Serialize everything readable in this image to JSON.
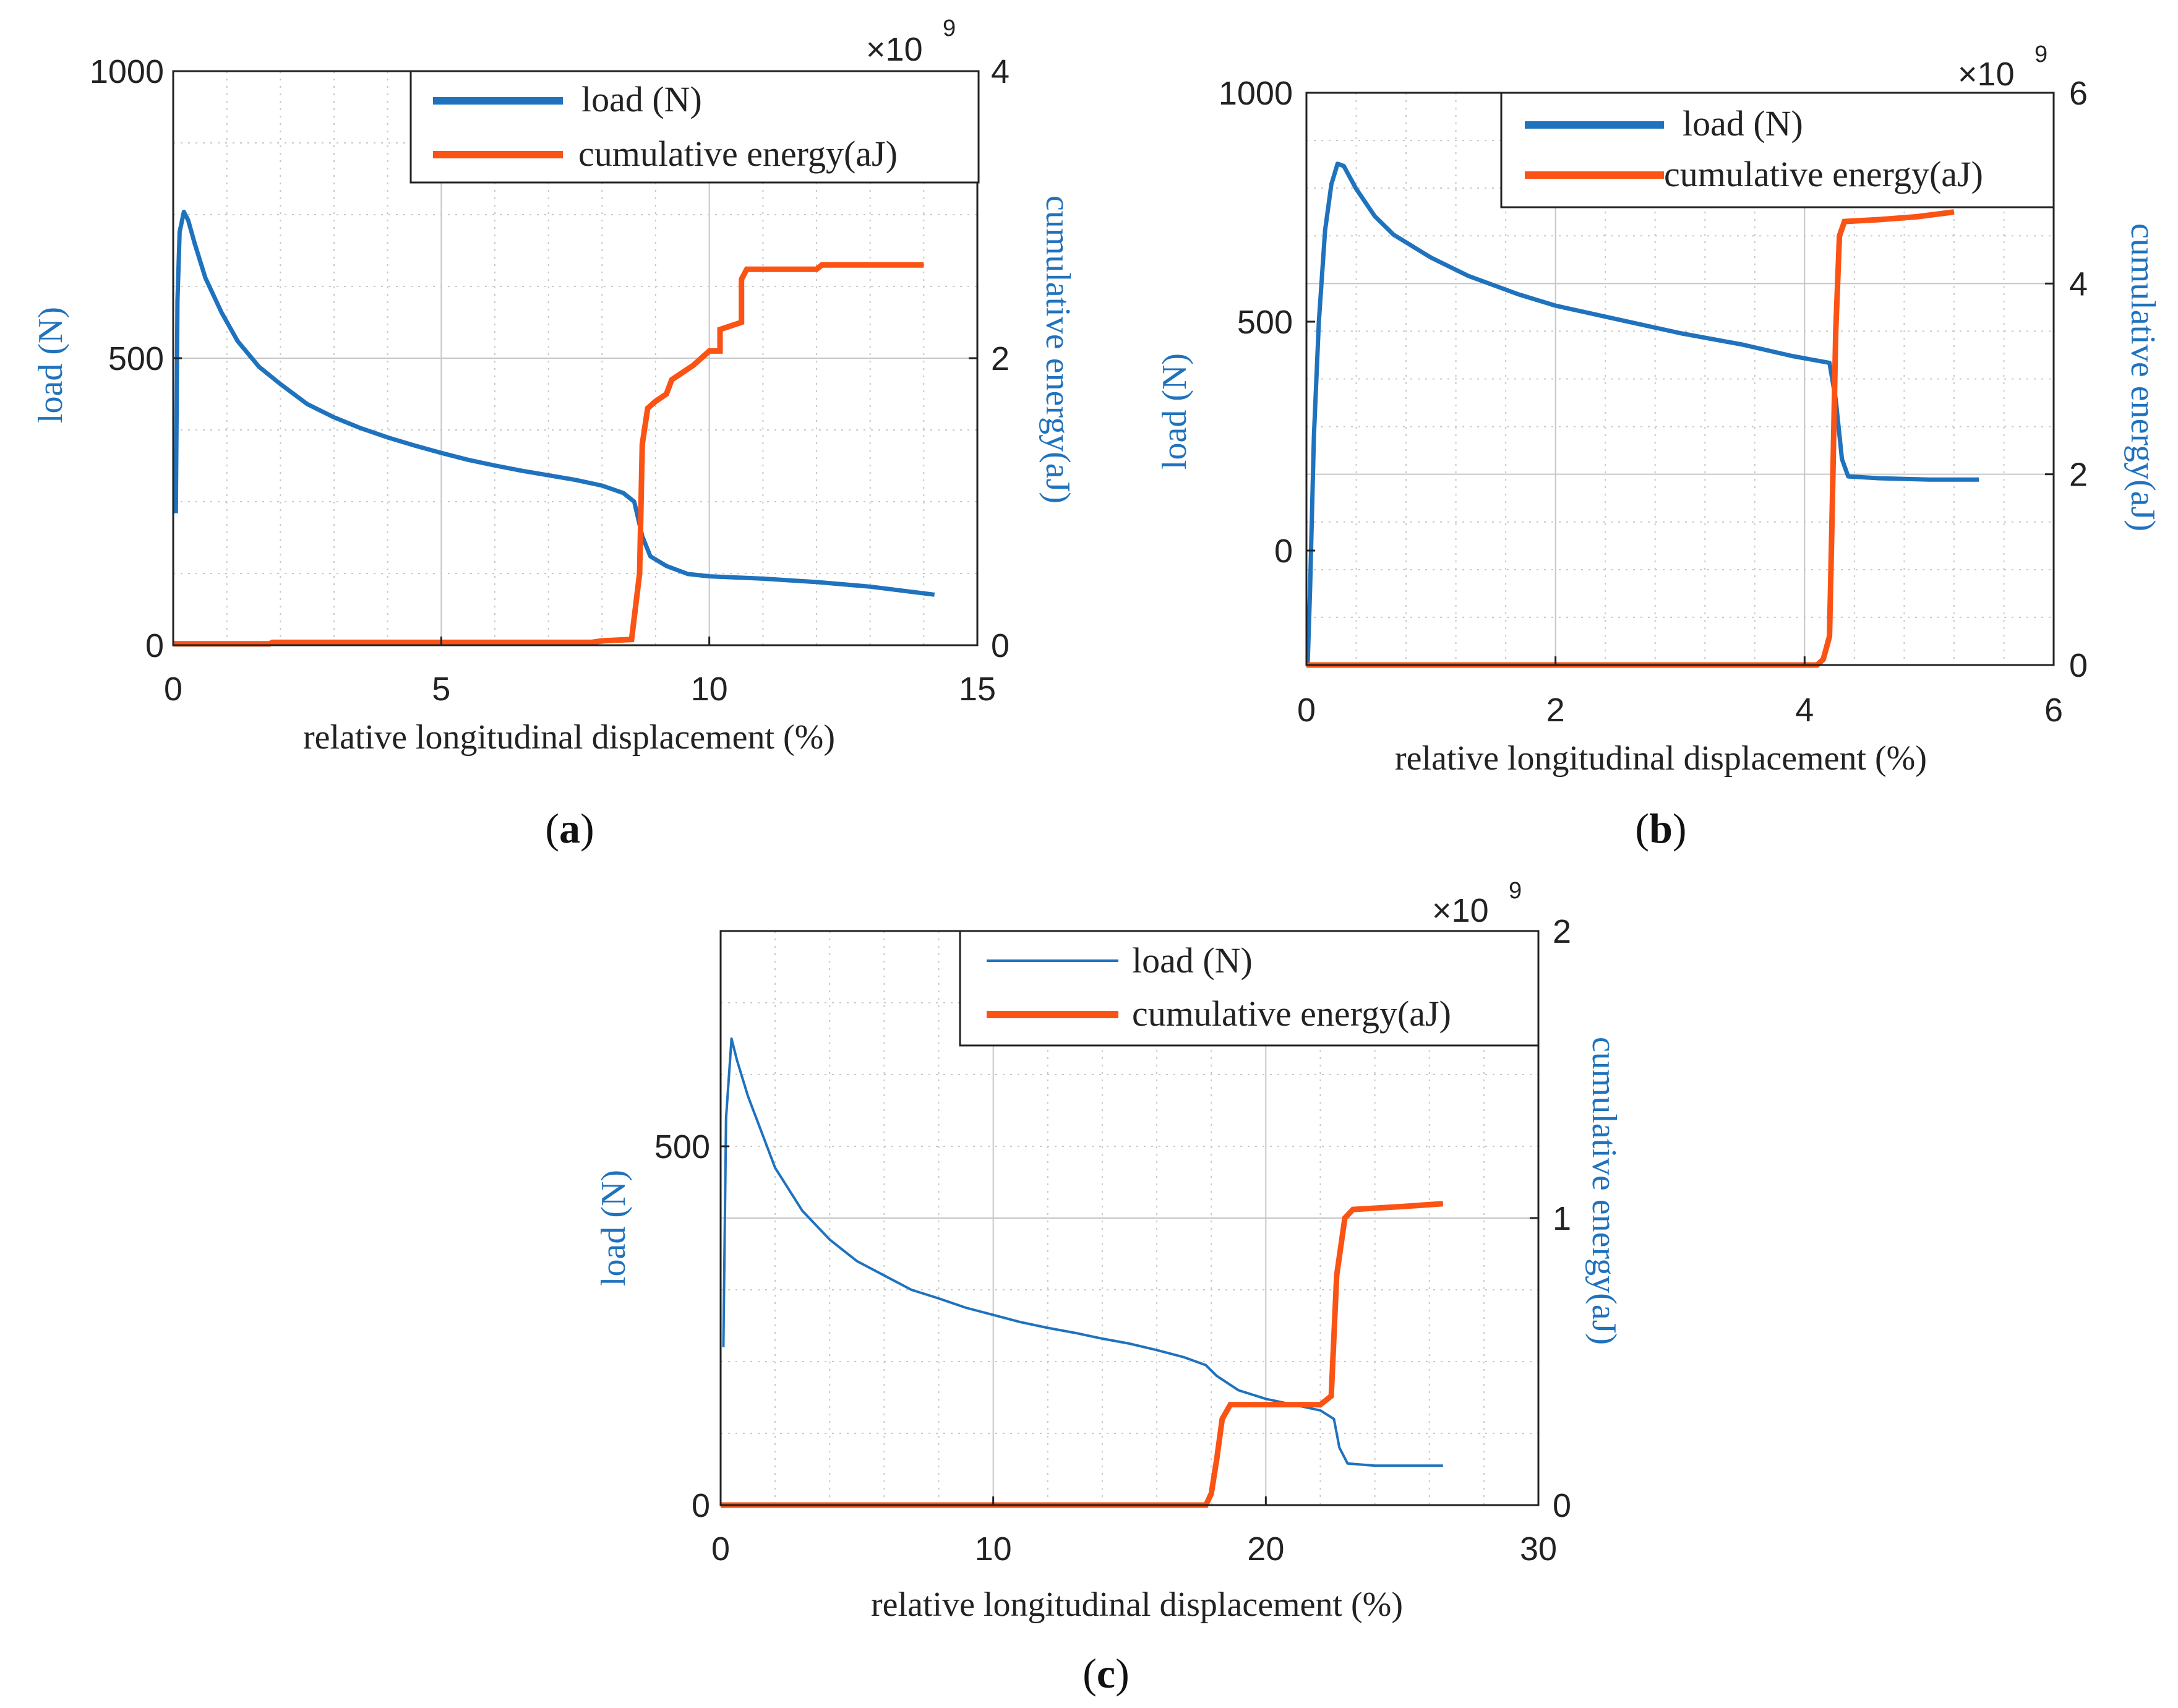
{
  "figure": {
    "caption_labels": [
      "a",
      "b",
      "c"
    ]
  },
  "colors": {
    "load": "#1f72bd",
    "energy": "#fb5314",
    "grid": "#b8b8b8",
    "axis": "#222222",
    "right_axis_label": "#1f72bd"
  },
  "chart_data": [
    {
      "id": "a",
      "type": "line",
      "caption": "(a)",
      "xlabel": "relative longitudinal displacement (%)",
      "ylabel_left": "load (N)",
      "ylabel_right": "cumulative energy(aJ)",
      "xlim": [
        0,
        15
      ],
      "ylim_left": [
        0,
        1000
      ],
      "ylim_right": [
        0,
        4
      ],
      "xticks": [
        0,
        5,
        10,
        15
      ],
      "yticks_left": [
        0,
        500,
        1000
      ],
      "yticks_right": [
        0,
        2,
        4
      ],
      "right_exponent": "×10",
      "right_exponent_power": "9",
      "grid": true,
      "legend": {
        "position": "top-right",
        "entries": [
          "load (N)",
          "cumulative energy(aJ)"
        ],
        "load_line": "thick"
      },
      "series": [
        {
          "name": "load (N)",
          "axis": "left",
          "points": [
            [
              0.05,
              230
            ],
            [
              0.08,
              600
            ],
            [
              0.12,
              720
            ],
            [
              0.2,
              755
            ],
            [
              0.28,
              740
            ],
            [
              0.4,
              700
            ],
            [
              0.6,
              640
            ],
            [
              0.9,
              580
            ],
            [
              1.2,
              530
            ],
            [
              1.6,
              485
            ],
            [
              2.0,
              455
            ],
            [
              2.5,
              420
            ],
            [
              3.0,
              397
            ],
            [
              3.5,
              378
            ],
            [
              4.0,
              362
            ],
            [
              4.5,
              348
            ],
            [
              5.0,
              335
            ],
            [
              5.5,
              323
            ],
            [
              6.0,
              313
            ],
            [
              6.5,
              304
            ],
            [
              7.0,
              296
            ],
            [
              7.5,
              288
            ],
            [
              8.0,
              278
            ],
            [
              8.4,
              265
            ],
            [
              8.6,
              250
            ],
            [
              8.75,
              190
            ],
            [
              8.9,
              155
            ],
            [
              9.2,
              138
            ],
            [
              9.6,
              124
            ],
            [
              10.0,
              120
            ],
            [
              11.0,
              116
            ],
            [
              12.0,
              110
            ],
            [
              13.0,
              102
            ],
            [
              13.6,
              95
            ],
            [
              14.2,
              88
            ]
          ]
        },
        {
          "name": "cumulative energy(aJ)",
          "axis": "right",
          "points": [
            [
              0,
              0.01
            ],
            [
              1.8,
              0.01
            ],
            [
              1.85,
              0.02
            ],
            [
              7.8,
              0.02
            ],
            [
              8.0,
              0.03
            ],
            [
              8.55,
              0.04
            ],
            [
              8.7,
              0.5
            ],
            [
              8.75,
              1.4
            ],
            [
              8.85,
              1.65
            ],
            [
              9.0,
              1.7
            ],
            [
              9.2,
              1.75
            ],
            [
              9.3,
              1.85
            ],
            [
              9.5,
              1.9
            ],
            [
              9.7,
              1.95
            ],
            [
              9.85,
              2.0
            ],
            [
              10.0,
              2.05
            ],
            [
              10.2,
              2.05
            ],
            [
              10.2,
              2.2
            ],
            [
              10.6,
              2.25
            ],
            [
              10.6,
              2.55
            ],
            [
              10.7,
              2.62
            ],
            [
              12.0,
              2.62
            ],
            [
              12.1,
              2.65
            ],
            [
              14.0,
              2.65
            ]
          ]
        }
      ]
    },
    {
      "id": "b",
      "type": "line",
      "caption": "(b)",
      "xlabel": "relative longitudinal displacement (%)",
      "ylabel_left": "load (N)",
      "ylabel_right": "cumulative energy(aJ)",
      "xlim": [
        0,
        6
      ],
      "ylim_left": [
        -250,
        1000
      ],
      "ylim_right": [
        0,
        6
      ],
      "xticks": [
        0,
        2,
        4,
        6
      ],
      "yticks_left": [
        0,
        500,
        1000
      ],
      "yticks_right": [
        0,
        2,
        4,
        6
      ],
      "right_exponent": "×10",
      "right_exponent_power": "9",
      "grid": true,
      "legend": {
        "position": "top-right",
        "entries": [
          "load (N)",
          "cumulative energy(aJ)"
        ],
        "load_line": "thick"
      },
      "series": [
        {
          "name": "load (N)",
          "axis": "left",
          "points": [
            [
              0.01,
              -250
            ],
            [
              0.03,
              -80
            ],
            [
              0.06,
              250
            ],
            [
              0.1,
              500
            ],
            [
              0.15,
              700
            ],
            [
              0.2,
              800
            ],
            [
              0.25,
              845
            ],
            [
              0.3,
              840
            ],
            [
              0.4,
              790
            ],
            [
              0.55,
              730
            ],
            [
              0.7,
              690
            ],
            [
              1.0,
              640
            ],
            [
              1.3,
              600
            ],
            [
              1.7,
              560
            ],
            [
              2.0,
              535
            ],
            [
              2.5,
              505
            ],
            [
              3.0,
              475
            ],
            [
              3.5,
              450
            ],
            [
              3.9,
              425
            ],
            [
              4.2,
              410
            ],
            [
              4.25,
              330
            ],
            [
              4.3,
              200
            ],
            [
              4.35,
              162
            ],
            [
              4.6,
              158
            ],
            [
              5.0,
              155
            ],
            [
              5.4,
              155
            ]
          ]
        },
        {
          "name": "cumulative energy(aJ)",
          "axis": "right",
          "points": [
            [
              0,
              0
            ],
            [
              4.1,
              0
            ],
            [
              4.15,
              0.06
            ],
            [
              4.2,
              0.3
            ],
            [
              4.22,
              1.5
            ],
            [
              4.25,
              3.5
            ],
            [
              4.28,
              4.5
            ],
            [
              4.32,
              4.65
            ],
            [
              4.6,
              4.67
            ],
            [
              4.9,
              4.7
            ],
            [
              5.2,
              4.75
            ]
          ]
        }
      ]
    },
    {
      "id": "c",
      "type": "line",
      "caption": "(c)",
      "xlabel": "relative longitudinal displacement (%)",
      "ylabel_left": "load (N)",
      "ylabel_right": "cumulative energy(aJ)",
      "xlim": [
        0,
        30
      ],
      "ylim_left": [
        0,
        800
      ],
      "ylim_right": [
        0,
        2
      ],
      "xticks": [
        0,
        10,
        20,
        30
      ],
      "yticks_left": [
        0,
        500
      ],
      "yticks_right": [
        0,
        1,
        2
      ],
      "right_exponent": "×10",
      "right_exponent_power": "9",
      "grid": true,
      "legend": {
        "position": "top-right",
        "entries": [
          "load (N)",
          "cumulative energy(aJ)"
        ],
        "load_line": "thin"
      },
      "series": [
        {
          "name": "load (N)",
          "axis": "left",
          "points": [
            [
              0.1,
              220
            ],
            [
              0.2,
              540
            ],
            [
              0.4,
              650
            ],
            [
              0.6,
              620
            ],
            [
              1.0,
              570
            ],
            [
              1.5,
              520
            ],
            [
              2.0,
              470
            ],
            [
              3.0,
              410
            ],
            [
              4.0,
              370
            ],
            [
              5.0,
              340
            ],
            [
              6.0,
              320
            ],
            [
              7.0,
              300
            ],
            [
              8.0,
              288
            ],
            [
              9.0,
              275
            ],
            [
              10.0,
              265
            ],
            [
              11.0,
              255
            ],
            [
              12.0,
              247
            ],
            [
              13.0,
              240
            ],
            [
              14.0,
              232
            ],
            [
              15.0,
              225
            ],
            [
              16.0,
              216
            ],
            [
              17.0,
              206
            ],
            [
              17.8,
              195
            ],
            [
              18.2,
              180
            ],
            [
              19.0,
              160
            ],
            [
              20.0,
              148
            ],
            [
              21.0,
              140
            ],
            [
              22.0,
              132
            ],
            [
              22.5,
              120
            ],
            [
              22.7,
              80
            ],
            [
              23.0,
              58
            ],
            [
              24.0,
              55
            ],
            [
              25.0,
              55
            ],
            [
              26.5,
              55
            ]
          ]
        },
        {
          "name": "cumulative energy(aJ)",
          "axis": "right",
          "points": [
            [
              0,
              0
            ],
            [
              17.8,
              0
            ],
            [
              18.0,
              0.04
            ],
            [
              18.2,
              0.16
            ],
            [
              18.4,
              0.3
            ],
            [
              18.7,
              0.35
            ],
            [
              20.0,
              0.35
            ],
            [
              22.0,
              0.35
            ],
            [
              22.4,
              0.38
            ],
            [
              22.6,
              0.8
            ],
            [
              22.9,
              1.0
            ],
            [
              23.2,
              1.03
            ],
            [
              25.0,
              1.04
            ],
            [
              26.5,
              1.05
            ]
          ]
        }
      ]
    }
  ]
}
